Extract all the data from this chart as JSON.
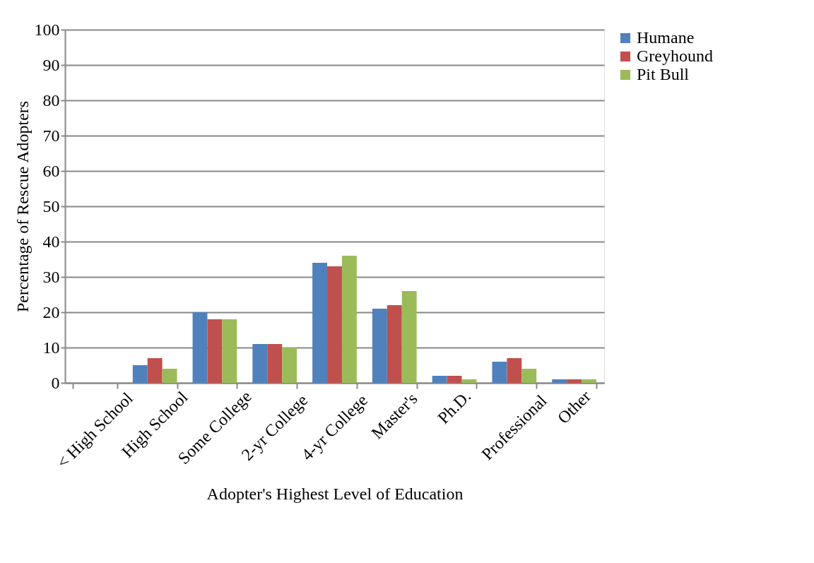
{
  "chart_data": {
    "type": "bar",
    "xlabel": "Adopter's Highest Level of Education",
    "ylabel": "Percentage of Rescue Adopters",
    "categories": [
      "< High School",
      "High School",
      "Some College",
      "2-yr College",
      "4-yr College",
      "Master's",
      "Ph.D.",
      "Professional",
      "Other"
    ],
    "series": [
      {
        "name": "Humane",
        "color": "#4f81bd",
        "values": [
          null,
          5,
          20,
          11,
          34,
          21,
          2,
          6,
          1
        ]
      },
      {
        "name": "Greyhound",
        "color": "#c0504d",
        "values": [
          null,
          7,
          18,
          11,
          33,
          22,
          2,
          7,
          1
        ]
      },
      {
        "name": "Pit Bull",
        "color": "#9bbb59",
        "values": [
          null,
          4,
          18,
          10,
          36,
          26,
          1,
          4,
          1
        ]
      }
    ],
    "ylim": [
      0,
      100
    ],
    "yticks": [
      0,
      10,
      20,
      30,
      40,
      50,
      60,
      70,
      80,
      90,
      100
    ],
    "grid": "y",
    "legend": "right"
  }
}
